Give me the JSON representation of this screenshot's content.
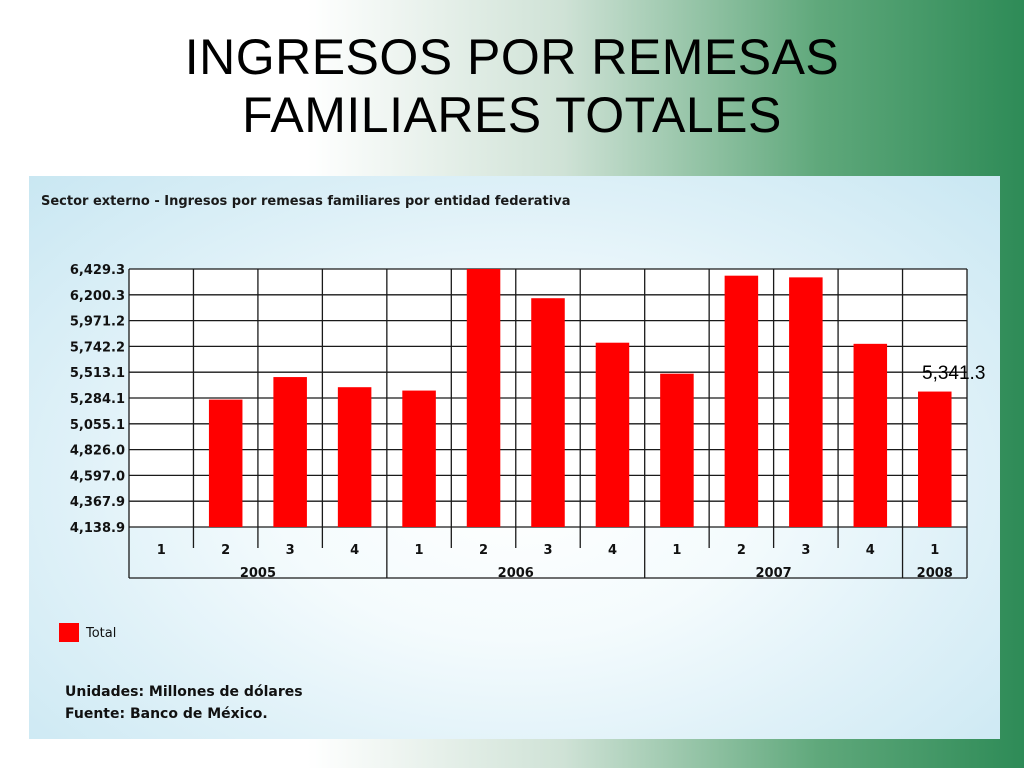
{
  "slide": {
    "title_line1": "INGRESOS POR REMESAS",
    "title_line2": "FAMILIARES TOTALES"
  },
  "colors": {
    "bar": "#ff0000",
    "panel_background": "#ddf0f7",
    "slide_accent": "#2e8b57"
  },
  "chart_data": {
    "type": "bar",
    "title": "Sector externo - Ingresos por remesas familiares por entidad federativa",
    "yticks": [
      "6,429.3",
      "6,200.3",
      "5,971.2",
      "5,742.2",
      "5,513.1",
      "5,284.1",
      "5,055.1",
      "4,826.0",
      "4,597.0",
      "4,367.9",
      "4,138.9"
    ],
    "ylim": [
      4138.9,
      6429.3
    ],
    "quarters": [
      "1",
      "2",
      "3",
      "4",
      "1",
      "2",
      "3",
      "4",
      "1",
      "2",
      "3",
      "4",
      "1"
    ],
    "year_groups": [
      {
        "label": "2005",
        "count": 4
      },
      {
        "label": "2006",
        "count": 4
      },
      {
        "label": "2007",
        "count": 4
      },
      {
        "label": "2008",
        "count": 1
      }
    ],
    "series": [
      {
        "name": "Total",
        "values": [
          null,
          5270,
          5470,
          5380,
          5350,
          6429.3,
          6170,
          5775,
          5500,
          6370,
          6355,
          5765,
          5341.3
        ]
      }
    ],
    "grid": true,
    "legend": "bottom-left",
    "units": "Unidades: Millones de dólares",
    "source": "Fuente: Banco de México.",
    "annotation": "5,341.3"
  }
}
